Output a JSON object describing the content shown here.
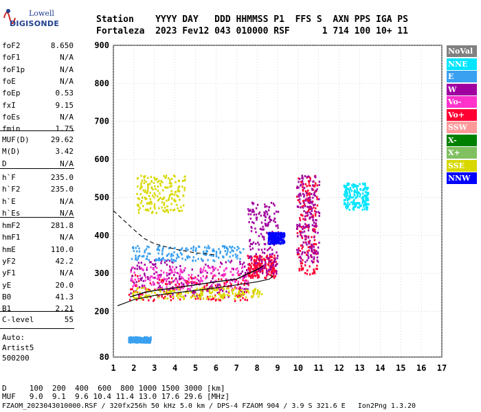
{
  "logo": {
    "line1": "Lowell",
    "line2": "DIGISONDE"
  },
  "header": {
    "row1": "Station    YYYY DAY   DDD HHMMSS P1  FFS S  AXN PPS IGA PS",
    "row2": "Fortaleza  2023 Fev12 043 010000 RSF      1 714 100 10+ 11"
  },
  "params_group1": [
    {
      "name": "foF2",
      "value": "8.650"
    },
    {
      "name": "foF1",
      "value": "N/A"
    },
    {
      "name": "foF1p",
      "value": "N/A"
    },
    {
      "name": "foE",
      "value": "N/A"
    },
    {
      "name": "foEp",
      "value": "0.53"
    },
    {
      "name": "fxI",
      "value": "9.15"
    },
    {
      "name": "foEs",
      "value": "N/A"
    },
    {
      "name": "fmin",
      "value": "1.75"
    }
  ],
  "params_group2": [
    {
      "name": "MUF(D)",
      "value": "29.62"
    },
    {
      "name": "M(D)",
      "value": "3.42"
    },
    {
      "name": "D",
      "value": "N/A"
    }
  ],
  "params_group3": [
    {
      "name": "h`F",
      "value": "235.0"
    },
    {
      "name": "h`F2",
      "value": "235.0"
    },
    {
      "name": "h`E",
      "value": "N/A"
    },
    {
      "name": "h`Es",
      "value": "N/A"
    }
  ],
  "params_group4": [
    {
      "name": "hmF2",
      "value": "281.8"
    },
    {
      "name": "hmF1",
      "value": "N/A"
    },
    {
      "name": "hmE",
      "value": "110.0"
    },
    {
      "name": "yF2",
      "value": "42.2"
    },
    {
      "name": "yF1",
      "value": "N/A"
    },
    {
      "name": "yE",
      "value": "20.0"
    },
    {
      "name": "B0",
      "value": "41.3"
    },
    {
      "name": "B1",
      "value": "2.21"
    }
  ],
  "clevel": {
    "name": "C-level",
    "value": "55"
  },
  "auto": [
    "Auto:",
    "Artist5",
    "500200"
  ],
  "legend": [
    {
      "label": "NoVal",
      "color": "#808080",
      "text": "#ffffff"
    },
    {
      "label": "NNE",
      "color": "#00e5ff",
      "text": "#ffffff"
    },
    {
      "label": "E",
      "color": "#3aa0f0",
      "text": "#ffffff"
    },
    {
      "label": "W",
      "color": "#a000a0",
      "text": "#ffffff"
    },
    {
      "label": "Vo-",
      "color": "#ff33cc",
      "text": "#ffffff"
    },
    {
      "label": "Vo+",
      "color": "#ff0033",
      "text": "#ffffff"
    },
    {
      "label": "SSW",
      "color": "#ff9999",
      "text": "#ffffff"
    },
    {
      "label": "X-",
      "color": "#008000",
      "text": "#ffffff"
    },
    {
      "label": "X+",
      "color": "#80c060",
      "text": "#ffffff"
    },
    {
      "label": "SSE",
      "color": "#d8d800",
      "text": "#ffffff"
    },
    {
      "label": "NNW",
      "color": "#0000ff",
      "text": "#ffffff"
    }
  ],
  "bottom": {
    "line1": "D     100  200  400  600  800 1000 1500 3000 [km]",
    "line2": "MUF   9.0  9.1  9.6 10.4 11.4 13.0 17.6 29.6 [MHz]",
    "line3": "FZAOM_2023043010000.RSF / 320fx256h 50 kHz 5.0 km / DPS-4 FZAOM 904 / 3.9 S 321.6 E   Ion2Png 1.3.20"
  },
  "chart_data": {
    "type": "scatter",
    "xlim": [
      1,
      17
    ],
    "ylim": [
      80,
      900
    ],
    "x_ticks": [
      1,
      2,
      3,
      4,
      5,
      6,
      7,
      8,
      9,
      10,
      11,
      12,
      13,
      14,
      15,
      16,
      17
    ],
    "y_ticks": [
      80,
      200,
      300,
      400,
      500,
      600,
      700,
      800,
      900
    ],
    "grid": true,
    "legend_position": "right",
    "traces": [
      {
        "kind": "solid",
        "points": [
          [
            1.2,
            215
          ],
          [
            2,
            231
          ],
          [
            3,
            242
          ],
          [
            4,
            249
          ],
          [
            5,
            255
          ],
          [
            6,
            262
          ],
          [
            7,
            270
          ],
          [
            8,
            278
          ],
          [
            8.6,
            285
          ],
          [
            8.75,
            292
          ],
          [
            8.7,
            296
          ]
        ]
      },
      {
        "kind": "dashed",
        "points": [
          [
            1.0,
            465
          ],
          [
            1.5,
            440
          ],
          [
            2,
            415
          ],
          [
            2.5,
            392
          ],
          [
            3,
            378
          ],
          [
            4,
            364
          ],
          [
            5,
            354
          ],
          [
            6,
            349
          ]
        ]
      },
      {
        "kind": "autoscaled",
        "points": [
          [
            1.8,
            238
          ],
          [
            2.5,
            250
          ],
          [
            3,
            255
          ],
          [
            4,
            262
          ],
          [
            5,
            270
          ],
          [
            6,
            278
          ],
          [
            7,
            285
          ],
          [
            7.5,
            298
          ],
          [
            8,
            310
          ],
          [
            8.3,
            320
          ]
        ]
      }
    ],
    "echo_regions": [
      {
        "color": "#ff0033",
        "x": [
          1.7,
          7.8
        ],
        "h": [
          230,
          300
        ]
      },
      {
        "color": "#a000a0",
        "x": [
          1.8,
          7.6
        ],
        "h": [
          240,
          340
        ]
      },
      {
        "color": "#ff33cc",
        "x": [
          1.8,
          7.6
        ],
        "h": [
          260,
          320
        ]
      },
      {
        "color": "#3aa0f0",
        "x": [
          1.8,
          7.3
        ],
        "h": [
          335,
          375
        ]
      },
      {
        "color": "#d8d800",
        "x": [
          1.9,
          8.2
        ],
        "h": [
          235,
          265
        ]
      },
      {
        "color": "#d8d800",
        "x": [
          2.1,
          4.5
        ],
        "h": [
          460,
          560
        ]
      },
      {
        "color": "#ff0033",
        "x": [
          7.5,
          8.9
        ],
        "h": [
          290,
          350
        ]
      },
      {
        "color": "#a000a0",
        "x": [
          7.5,
          9.0
        ],
        "h": [
          300,
          490
        ]
      },
      {
        "color": "#0000ff",
        "x": [
          8.5,
          9.3
        ],
        "h": [
          380,
          410
        ]
      },
      {
        "color": "#ff0033",
        "x": [
          9.9,
          10.9
        ],
        "h": [
          300,
          560
        ]
      },
      {
        "color": "#a000a0",
        "x": [
          9.9,
          11.0
        ],
        "h": [
          330,
          560
        ]
      },
      {
        "color": "#00e5ff",
        "x": [
          12.2,
          13.4
        ],
        "h": [
          470,
          540
        ]
      },
      {
        "color": "#3aa0f0",
        "x": [
          1.7,
          2.8
        ],
        "h": [
          120,
          135
        ]
      }
    ]
  }
}
